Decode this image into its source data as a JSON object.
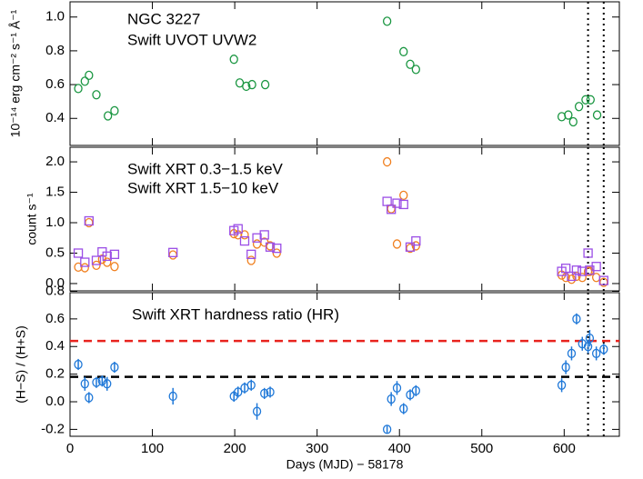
{
  "chart_data": [
    {
      "type": "scatter",
      "annotation": "NGC 3227",
      "ylabel": "10⁻¹⁴ erg cm⁻² s⁻¹ Å⁻¹",
      "ylim": [
        0.24,
        1.09
      ],
      "yticks": [
        0.4,
        0.6,
        0.8,
        {
          "value": 1.0,
          "label": "1.0"
        }
      ],
      "vlines": [
        629,
        648
      ],
      "legend": "upper left",
      "series": [
        {
          "name": "Swift UVOT UVW2",
          "color": "#1a9641",
          "marker": "circle",
          "x": [
            10,
            18,
            23,
            32,
            46,
            54,
            199,
            206,
            214,
            221,
            237,
            385,
            405,
            413,
            420,
            597,
            605,
            611,
            618,
            626,
            632,
            640
          ],
          "values": [
            0.577,
            0.62,
            0.655,
            0.54,
            0.415,
            0.445,
            0.75,
            0.61,
            0.59,
            0.6,
            0.6,
            0.975,
            0.795,
            0.72,
            0.69,
            0.41,
            0.42,
            0.38,
            0.47,
            0.51,
            0.51,
            0.42
          ]
        }
      ]
    },
    {
      "type": "scatter",
      "ylabel": "count s⁻¹",
      "ylim": [
        -0.12,
        2.24
      ],
      "yticks": [
        {
          "value": 0.0,
          "label": "0.0"
        },
        0.5,
        {
          "value": 1.0,
          "label": "1.0"
        },
        1.5,
        {
          "value": 2.0,
          "label": "2.0"
        }
      ],
      "vlines": [
        629,
        648
      ],
      "legend": "upper left",
      "series": [
        {
          "name": "Swift XRT 0.3−1.5 keV",
          "color": "#f07f1e",
          "marker": "circle",
          "x": [
            10,
            18,
            23,
            32,
            39,
            45,
            54,
            125,
            199,
            204,
            212,
            220,
            227,
            236,
            243,
            251,
            385,
            390,
            397,
            405,
            413,
            420,
            597,
            602,
            609,
            615,
            622,
            629,
            631,
            639,
            648
          ],
          "values": [
            0.27,
            0.26,
            1.0,
            0.3,
            0.4,
            0.35,
            0.28,
            0.47,
            0.82,
            0.8,
            0.8,
            0.38,
            0.65,
            0.68,
            0.62,
            0.5,
            2.0,
            1.23,
            0.65,
            1.45,
            0.58,
            0.62,
            0.14,
            0.1,
            0.07,
            0.12,
            0.1,
            0.2,
            0.2,
            0.1,
            0.02
          ]
        },
        {
          "name": "Swift XRT 1.5−10 keV",
          "color": "#9b4ee6",
          "marker": "square",
          "x": [
            10,
            18,
            23,
            32,
            39,
            45,
            54,
            125,
            199,
            204,
            212,
            220,
            227,
            236,
            243,
            251,
            385,
            390,
            397,
            405,
            413,
            420,
            597,
            602,
            609,
            615,
            622,
            629,
            631,
            639,
            648
          ],
          "values": [
            0.5,
            0.35,
            1.03,
            0.38,
            0.52,
            0.45,
            0.48,
            0.51,
            0.87,
            0.9,
            0.7,
            0.48,
            0.75,
            0.8,
            0.6,
            0.58,
            1.35,
            1.22,
            1.32,
            1.3,
            0.6,
            0.7,
            0.2,
            0.25,
            0.12,
            0.22,
            0.2,
            0.5,
            0.22,
            0.28,
            0.05
          ]
        }
      ]
    },
    {
      "type": "scatter",
      "ylabel": "(H−S) / (H+S)",
      "xlabel": "Days (MJD) − 58178",
      "xlim": [
        0,
        667
      ],
      "xticks": [
        0,
        100,
        200,
        300,
        400,
        500,
        600
      ],
      "ylim": [
        -0.25,
        0.79
      ],
      "yticks": [
        -0.2,
        {
          "value": 0.0,
          "label": "0.0"
        },
        0.2,
        0.4,
        0.6,
        0.8
      ],
      "vlines": [
        629,
        648
      ],
      "legend": "upper left",
      "hlines": [
        {
          "value": 0.44,
          "color": "#e8231e"
        },
        {
          "value": 0.18,
          "color": "#000000"
        }
      ],
      "series": [
        {
          "name": "Swift XRT hardness ratio (HR)",
          "color": "#1f78d8",
          "marker": "circle",
          "x": [
            10,
            18,
            23,
            32,
            39,
            45,
            54,
            125,
            199,
            204,
            212,
            220,
            227,
            236,
            243,
            385,
            390,
            397,
            405,
            413,
            420,
            597,
            602,
            609,
            615,
            622,
            629,
            631,
            639,
            648
          ],
          "values": [
            0.27,
            0.13,
            0.03,
            0.14,
            0.15,
            0.13,
            0.25,
            0.04,
            0.04,
            0.07,
            0.1,
            0.12,
            -0.07,
            0.06,
            0.07,
            -0.2,
            0.02,
            0.1,
            -0.05,
            0.05,
            0.08,
            0.12,
            0.25,
            0.35,
            0.6,
            0.42,
            0.4,
            0.46,
            0.35,
            0.38
          ],
          "errors": [
            0.04,
            0.05,
            0.04,
            0.04,
            0.04,
            0.05,
            0.04,
            0.06,
            0.04,
            0.04,
            0.04,
            0.04,
            0.06,
            0.04,
            0.04,
            0.03,
            0.05,
            0.05,
            0.04,
            0.04,
            0.04,
            0.05,
            0.05,
            0.05,
            0.04,
            0.05,
            0.05,
            0.06,
            0.05,
            0.04
          ]
        }
      ]
    }
  ]
}
